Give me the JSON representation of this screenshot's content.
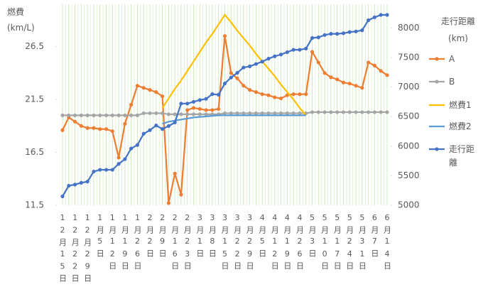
{
  "chart_data": {
    "type": "line",
    "y_label": "燃費\n(km/L)",
    "y2_label": "走行距離\n(km)",
    "categories": [
      "12月15日",
      null,
      "12月22日",
      null,
      "12月29日",
      null,
      "1月5日",
      null,
      "1月12日",
      null,
      "1月19日",
      null,
      "1月26日",
      null,
      "2月2日",
      null,
      "2月9日",
      null,
      "2月16日",
      null,
      "2月23日",
      null,
      "3月1日",
      null,
      "3月8日",
      null,
      "3月15日",
      null,
      "3月22日",
      null,
      "3月29日",
      null,
      "4月5日",
      null,
      "4月12日",
      null,
      "4月19日",
      null,
      "4月26日",
      null,
      "5月3日",
      null,
      "5月10日",
      null,
      "5月17日",
      null,
      "5月24日",
      null,
      "5月31日",
      null,
      "6月7日",
      null,
      "6月14日"
    ],
    "ylim": [
      11.5,
      30.5
    ],
    "yticks": [
      11.5,
      16.5,
      21.5,
      26.5
    ],
    "y2lim": [
      5000,
      8400
    ],
    "y2ticks": [
      5000,
      5500,
      6000,
      6500,
      7000,
      7500,
      8000
    ],
    "grid": true,
    "series": [
      {
        "name": "A",
        "color": "#ed7d31",
        "marker": true,
        "values": [
          18.6,
          19.8,
          19.4,
          19.0,
          18.8,
          18.8,
          18.7,
          18.7,
          18.5,
          16.0,
          19.2,
          21.0,
          22.8,
          22.6,
          22.4,
          22.2,
          21.8,
          11.7,
          14.5,
          12.5,
          20.5,
          20.7,
          20.6,
          20.5,
          20.5,
          20.6,
          27.5,
          24.0,
          23.5,
          22.8,
          22.4,
          22.2,
          22.0,
          21.9,
          21.7,
          21.6,
          21.9,
          22.0,
          22.0,
          22.0,
          26.0,
          25.0,
          24.0,
          23.6,
          23.4,
          23.1,
          23.0,
          22.8,
          22.6,
          25.0,
          24.7,
          24.2,
          23.8
        ]
      },
      {
        "name": "B",
        "color": "#a5a5a5",
        "marker": true,
        "values": [
          20.0,
          20.0,
          20.0,
          20.0,
          20.0,
          20.0,
          20.0,
          20.0,
          20.0,
          20.0,
          20.0,
          20.0,
          20.0,
          20.2,
          20.2,
          20.2,
          20.2,
          20.1,
          20.1,
          20.1,
          20.1,
          20.1,
          20.1,
          20.1,
          20.1,
          20.1,
          20.2,
          20.2,
          20.2,
          20.2,
          20.2,
          20.2,
          20.2,
          20.2,
          20.2,
          20.2,
          20.2,
          20.2,
          20.2,
          20.2,
          20.3,
          20.3,
          20.3,
          20.3,
          20.3,
          20.3,
          20.3,
          20.3,
          20.3,
          20.3,
          20.3,
          20.3,
          20.3
        ]
      },
      {
        "name": "燃費1",
        "color": "#ffc000",
        "marker": false,
        "values": [
          null,
          null,
          null,
          null,
          null,
          null,
          null,
          null,
          null,
          null,
          null,
          null,
          null,
          null,
          null,
          null,
          20.7,
          21.6,
          22.5,
          23.3,
          24.2,
          25.1,
          26.0,
          26.9,
          27.7,
          28.6,
          29.5,
          28.8,
          28.0,
          27.3,
          26.6,
          25.8,
          25.1,
          24.4,
          23.7,
          22.9,
          22.2,
          21.5,
          20.7,
          20.0,
          null,
          null,
          null,
          null,
          null,
          null,
          null,
          null,
          null,
          null,
          null,
          null,
          null
        ]
      },
      {
        "name": "燃費2",
        "color": "#5b9bd5",
        "marker": false,
        "values": [
          null,
          null,
          null,
          null,
          null,
          null,
          null,
          null,
          null,
          null,
          null,
          null,
          null,
          null,
          null,
          null,
          19.2,
          19.4,
          19.5,
          19.6,
          19.7,
          19.8,
          19.85,
          19.9,
          19.95,
          20.0,
          20.0,
          20.0,
          20.0,
          20.0,
          20.0,
          20.0,
          20.0,
          20.0,
          20.0,
          20.0,
          20.0,
          20.0,
          20.0,
          20.0,
          null,
          null,
          null,
          null,
          null,
          null,
          null,
          null,
          null,
          null,
          null,
          null,
          null
        ]
      },
      {
        "name": "走行距離",
        "color": "#4472c4",
        "marker": true,
        "axis": "y2",
        "values": [
          5150,
          5330,
          5350,
          5380,
          5400,
          5570,
          5600,
          5600,
          5600,
          5700,
          5780,
          5960,
          6020,
          6210,
          6270,
          6350,
          6290,
          6340,
          6400,
          6720,
          6720,
          6750,
          6780,
          6800,
          6880,
          6870,
          7060,
          7160,
          7240,
          7330,
          7350,
          7390,
          7430,
          7480,
          7520,
          7550,
          7590,
          7630,
          7630,
          7650,
          7830,
          7840,
          7880,
          7900,
          7900,
          7910,
          7930,
          7940,
          7960,
          8130,
          8180,
          8220,
          8220
        ]
      }
    ]
  }
}
